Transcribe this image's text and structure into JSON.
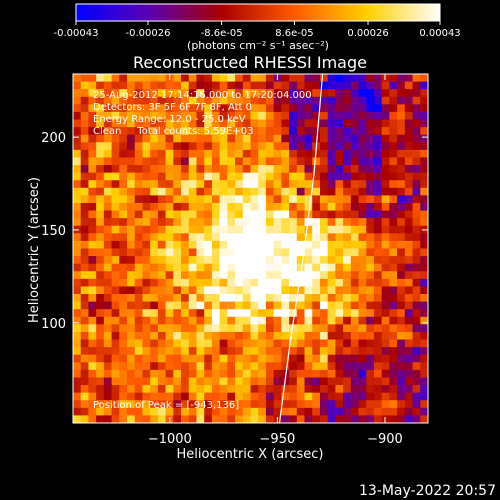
{
  "colorbar": {
    "tick_labels": [
      "-0.00043",
      "-0.00026",
      "-8.6e-05",
      "8.6e-05",
      "0.00026",
      "0.00043"
    ],
    "tick_values": [
      -0.00043,
      -0.00026,
      -8.6e-05,
      8.6e-05,
      0.00026,
      0.00043
    ],
    "range": [
      -0.00043,
      0.00043
    ],
    "units": "(photons cm⁻² s⁻¹ asec⁻²)",
    "colors": [
      "#0000ff",
      "#5a00b4",
      "#aa0000",
      "#ff5a00",
      "#ffd000",
      "#ffffff"
    ]
  },
  "timestamp": "13-May-2022 20:57",
  "chart_data": {
    "type": "heatmap",
    "title": "Reconstructed RHESSI Image",
    "xlabel": "Heliocentric X (arcsec)",
    "ylabel": "Heliocentric Y (arcsec)",
    "xlim": [
      -1045,
      -880
    ],
    "ylim": [
      46,
      234
    ],
    "x_ticks": [
      -1000,
      -950,
      -900
    ],
    "x_tick_labels": [
      "−1000",
      "−950",
      "−900"
    ],
    "y_ticks": [
      100,
      150,
      200
    ],
    "y_tick_labels": [
      "100",
      "150",
      "200"
    ],
    "info_lines": [
      "25-Aug-2012 17:14:16.000 to 17:20:04.000",
      "Detectors: 3F 5F 6F 7F 8F, Att 0",
      "Energy Range: 12.0 - 25.0 keV",
      "Clean     Total counts: 5.59E+03"
    ],
    "peak_text": "Position of Peak = [-943,136]",
    "peak": [
      -943,
      136
    ],
    "limb_curve": [
      [
        -949,
        46
      ],
      [
        -944,
        90
      ],
      [
        -938,
        135
      ],
      [
        -933,
        180
      ],
      [
        -929,
        234
      ]
    ],
    "value_range": [
      -0.00043,
      0.00043
    ]
  }
}
